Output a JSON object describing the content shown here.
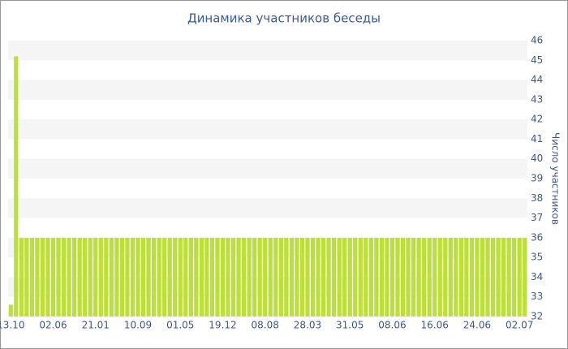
{
  "chart_data": {
    "type": "bar",
    "title": "Динамика участников беседы",
    "y_label": "Число участников",
    "categories": [
      "13.10",
      null,
      null,
      null,
      null,
      null,
      null,
      null,
      "02.06",
      null,
      null,
      null,
      null,
      null,
      null,
      null,
      "21.01",
      null,
      null,
      null,
      null,
      null,
      null,
      null,
      "10.09",
      null,
      null,
      null,
      null,
      null,
      null,
      null,
      "01.05",
      null,
      null,
      null,
      null,
      null,
      null,
      null,
      "19.12",
      null,
      null,
      null,
      null,
      null,
      null,
      null,
      "08.08",
      null,
      null,
      null,
      null,
      null,
      null,
      null,
      "28.03",
      null,
      null,
      null,
      null,
      null,
      null,
      null,
      "31.05",
      null,
      null,
      null,
      null,
      null,
      null,
      null,
      "08.06",
      null,
      null,
      null,
      null,
      null,
      null,
      null,
      "16.06",
      null,
      null,
      null,
      null,
      null,
      null,
      null,
      "24.06",
      null,
      null,
      null,
      null,
      null,
      null,
      null,
      "02.07",
      null
    ],
    "values": [
      32.6,
      45.2,
      36,
      36,
      36,
      36,
      36,
      36,
      36,
      36,
      36,
      36,
      36,
      36,
      36,
      36,
      36,
      36,
      36,
      36,
      36,
      36,
      36,
      36,
      36,
      36,
      36,
      36,
      36,
      36,
      36,
      36,
      36,
      36,
      36,
      36,
      36,
      36,
      36,
      36,
      36,
      36,
      36,
      36,
      36,
      36,
      36,
      36,
      36,
      36,
      36,
      36,
      36,
      36,
      36,
      36,
      36,
      36,
      36,
      36,
      36,
      36,
      36,
      36,
      36,
      36,
      36,
      36,
      36,
      36,
      36,
      36,
      36,
      36,
      36,
      36,
      36,
      36,
      36,
      36,
      36,
      36,
      36,
      36,
      36,
      36,
      36,
      36,
      36,
      36,
      36,
      36,
      36,
      36,
      36,
      36,
      36,
      36
    ],
    "color": "#bde038",
    "ylim": [
      32,
      46
    ],
    "yticks": [
      32,
      33,
      34,
      35,
      36,
      37,
      38,
      39,
      40,
      41,
      42,
      43,
      44,
      45,
      46
    ],
    "grid": true
  }
}
